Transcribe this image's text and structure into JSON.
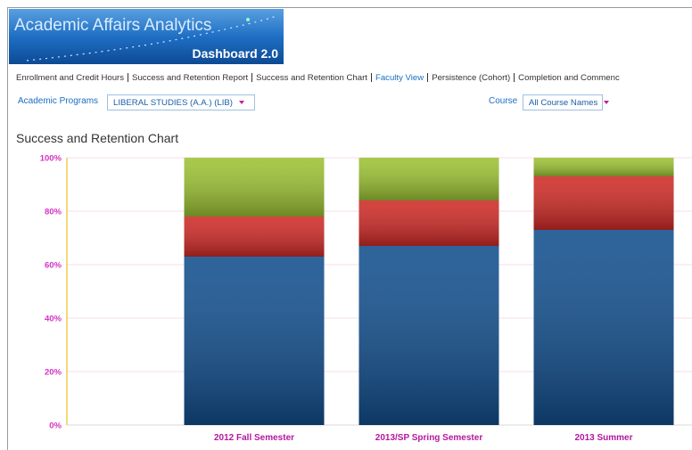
{
  "header": {
    "title": "Academic Affairs Analytics",
    "subtitle": "Dashboard 2.0"
  },
  "nav": [
    {
      "label": "Enrollment and Credit Hours"
    },
    {
      "label": "Success and Retention Report"
    },
    {
      "label": "Success and Retention Chart"
    },
    {
      "label": "Faculty View",
      "active": true
    },
    {
      "label": "Persistence (Cohort)"
    },
    {
      "label": "Completion and Commenc"
    }
  ],
  "filters": [
    {
      "label": "Academic Programs",
      "value": "LIBERAL STUDIES (A.A.) (LIB)"
    },
    {
      "label": "Course",
      "value": "All Course Names"
    }
  ],
  "chart_data": {
    "type": "bar",
    "stacked": true,
    "title": "Success and Retention Chart",
    "categories": [
      "2012 Fall Semester",
      "2013/SP Spring Semester",
      "2013 Summer"
    ],
    "series": [
      {
        "color": "#124f8e",
        "values": [
          63,
          67,
          73
        ]
      },
      {
        "color": "#cf2a26",
        "values": [
          15,
          17,
          20
        ]
      },
      {
        "color": "#9cc233",
        "values": [
          22,
          16,
          7
        ]
      }
    ],
    "ylim": [
      0,
      100
    ],
    "yticks": [
      {
        "value": 0,
        "label": "0%"
      },
      {
        "value": 20,
        "label": "20%"
      },
      {
        "value": 40,
        "label": "40%"
      },
      {
        "value": 60,
        "label": "60%"
      },
      {
        "value": 80,
        "label": "80%"
      },
      {
        "value": 100,
        "label": "100%"
      }
    ],
    "grid": true
  }
}
